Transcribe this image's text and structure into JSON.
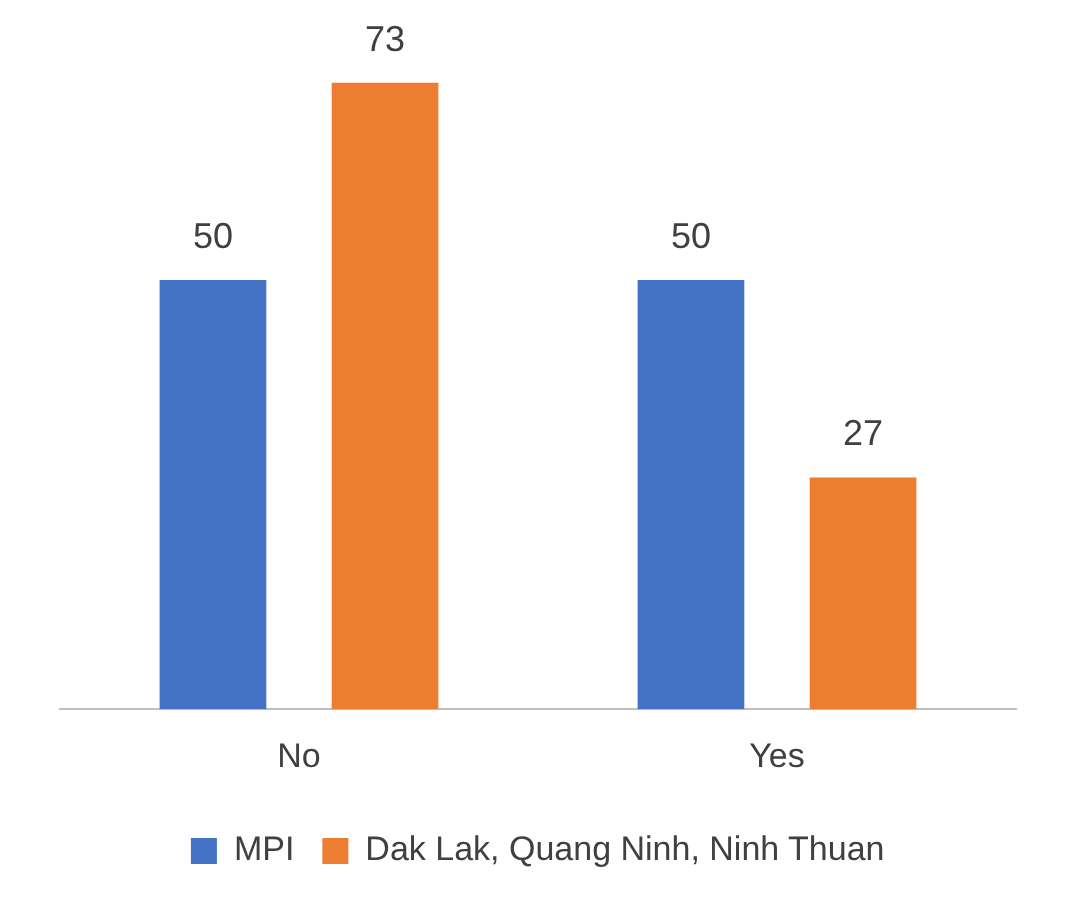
{
  "chart_data": {
    "type": "bar",
    "categories": [
      "No",
      "Yes"
    ],
    "series": [
      {
        "name": "MPI",
        "color": "#4472c4",
        "values": [
          50,
          50
        ]
      },
      {
        "name": "Dak Lak, Quang Ninh, Ninh Thuan",
        "color": "#ed7d31",
        "values": [
          73,
          27
        ]
      }
    ],
    "data_labels": true,
    "legend": "bottom",
    "grid": false
  }
}
